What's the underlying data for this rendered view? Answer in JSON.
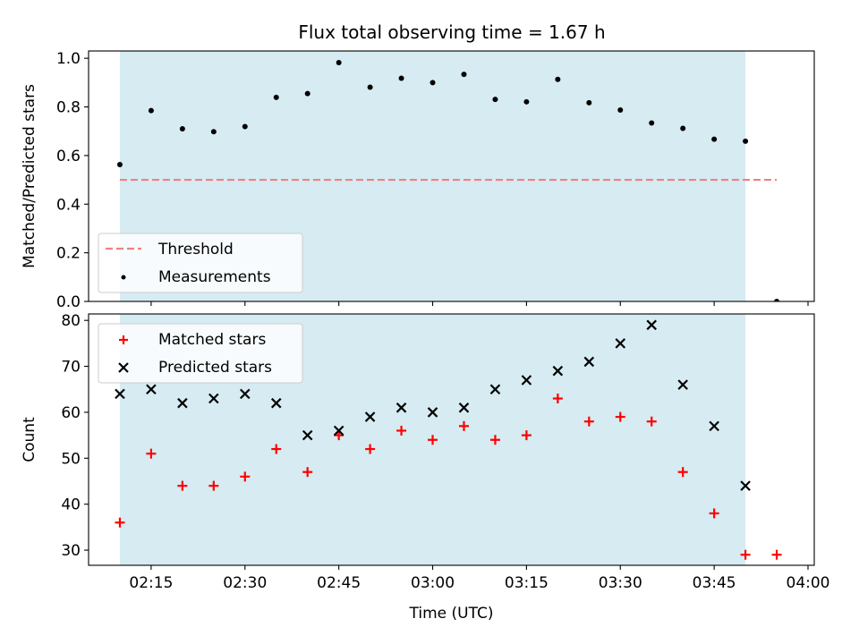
{
  "figure": {
    "title": "Flux total observing time = 1.67 h"
  },
  "colors": {
    "shade": "#add8e6",
    "threshold": "#f08080",
    "measurement": "#000000",
    "matched": "#ff0000",
    "predicted": "#000000"
  },
  "chart_data": [
    {
      "type": "scatter",
      "name": "ratio",
      "xlabel": "",
      "ylabel": "Matched/Predicted stars",
      "xlim": [
        "02:05",
        "04:01"
      ],
      "ylim": [
        0,
        1.03
      ],
      "yticks": [
        0.0,
        0.2,
        0.4,
        0.6,
        0.8,
        1.0
      ],
      "ytick_labels": [
        "0.0",
        "0.2",
        "0.4",
        "0.6",
        "0.8",
        "1.0"
      ],
      "shaded_span": [
        "02:10",
        "03:50"
      ],
      "threshold": {
        "label": "Threshold",
        "value": 0.5,
        "x": [
          "02:10",
          "03:55"
        ],
        "style": "dashed"
      },
      "legend": {
        "position": "lower-left",
        "entries": [
          "Threshold",
          "Measurements"
        ]
      },
      "series": [
        {
          "name": "Measurements",
          "x": [
            "02:10",
            "02:15",
            "02:20",
            "02:25",
            "02:30",
            "02:35",
            "02:40",
            "02:45",
            "02:50",
            "02:55",
            "03:00",
            "03:05",
            "03:10",
            "03:15",
            "03:20",
            "03:25",
            "03:30",
            "03:35",
            "03:40",
            "03:45",
            "03:50",
            "03:55"
          ],
          "values": [
            0.563,
            0.785,
            0.71,
            0.698,
            0.719,
            0.839,
            0.855,
            0.982,
            0.881,
            0.918,
            0.9,
            0.934,
            0.831,
            0.821,
            0.913,
            0.817,
            0.787,
            0.734,
            0.712,
            0.667,
            0.659,
            0.0
          ]
        }
      ]
    },
    {
      "type": "scatter",
      "name": "counts",
      "xlabel": "Time (UTC)",
      "ylabel": "Count",
      "xlim": [
        "02:05",
        "04:01"
      ],
      "ylim": [
        26.7,
        81.4
      ],
      "xticks": [
        "02:15",
        "02:30",
        "02:45",
        "03:00",
        "03:15",
        "03:30",
        "03:45",
        "04:00"
      ],
      "yticks": [
        30,
        40,
        50,
        60,
        70,
        80
      ],
      "ytick_labels": [
        "30",
        "40",
        "50",
        "60",
        "70",
        "80"
      ],
      "shaded_span": [
        "02:10",
        "03:50"
      ],
      "legend": {
        "position": "upper-left",
        "entries": [
          "Matched stars",
          "Predicted stars"
        ]
      },
      "series": [
        {
          "name": "Matched stars",
          "marker": "plus",
          "x": [
            "02:10",
            "02:15",
            "02:20",
            "02:25",
            "02:30",
            "02:35",
            "02:40",
            "02:45",
            "02:50",
            "02:55",
            "03:00",
            "03:05",
            "03:10",
            "03:15",
            "03:20",
            "03:25",
            "03:30",
            "03:35",
            "03:40",
            "03:45",
            "03:50",
            "03:55"
          ],
          "values": [
            36,
            51,
            44,
            44,
            46,
            52,
            47,
            55,
            52,
            56,
            54,
            57,
            54,
            55,
            63,
            58,
            59,
            58,
            47,
            38,
            29,
            29
          ]
        },
        {
          "name": "Predicted stars",
          "marker": "x",
          "x": [
            "02:10",
            "02:15",
            "02:20",
            "02:25",
            "02:30",
            "02:35",
            "02:40",
            "02:45",
            "02:50",
            "02:55",
            "03:00",
            "03:05",
            "03:10",
            "03:15",
            "03:20",
            "03:25",
            "03:30",
            "03:35",
            "03:40",
            "03:45",
            "03:50"
          ],
          "values": [
            64,
            65,
            62,
            63,
            64,
            62,
            55,
            56,
            59,
            61,
            60,
            61,
            65,
            67,
            69,
            71,
            75,
            79,
            66,
            57,
            44
          ]
        }
      ]
    }
  ]
}
